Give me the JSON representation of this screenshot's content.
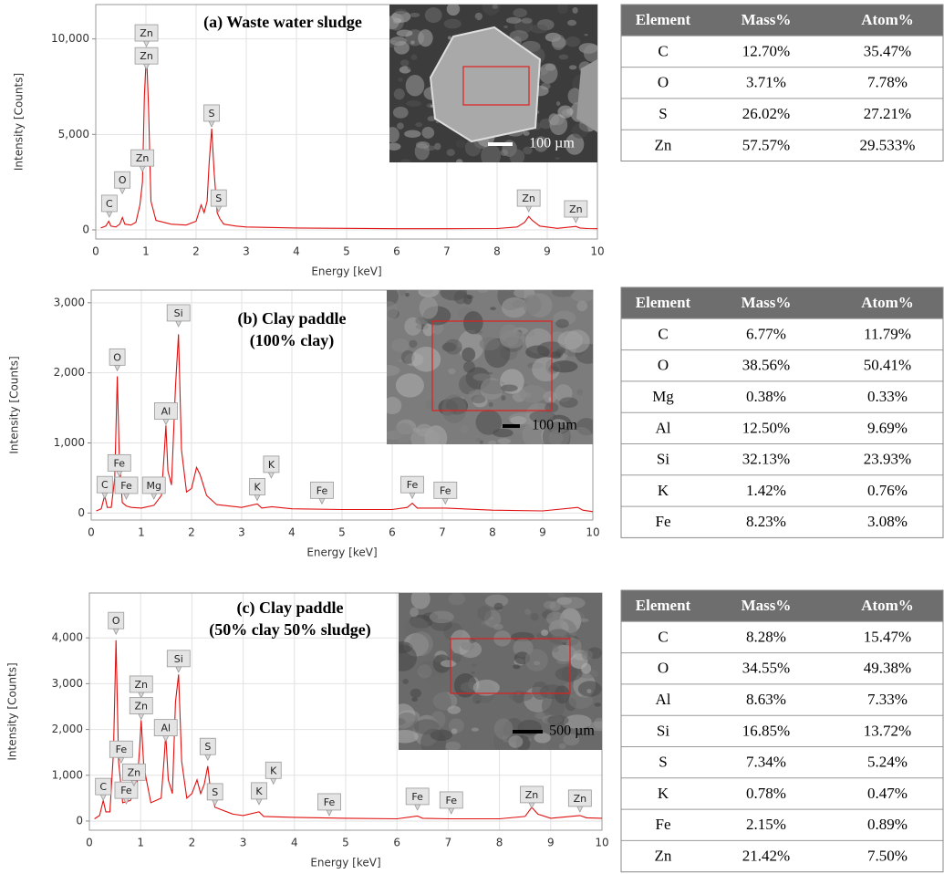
{
  "chart_data": [
    {
      "type": "line",
      "title": "(a) Waste water sludge",
      "inset_scale": "100 µm",
      "x_label": "Energy [keV]",
      "y_label": "Intensity [Counts]",
      "color": "#e01010",
      "grid": true,
      "xlim": [
        0,
        10
      ],
      "xticks": [
        0,
        1,
        2,
        3,
        4,
        5,
        6,
        7,
        8,
        9,
        10
      ],
      "ylim": [
        -480,
        11800
      ],
      "yticks": [
        0,
        {
          "value": 5000,
          "label": "5,000"
        },
        {
          "value": 10000,
          "label": "10,000"
        }
      ],
      "x": [
        0.1,
        0.2,
        0.26,
        0.3,
        0.4,
        0.48,
        0.53,
        0.58,
        0.7,
        0.8,
        0.88,
        0.93,
        0.97,
        1.01,
        1.05,
        1.1,
        1.2,
        1.5,
        1.8,
        2.0,
        2.1,
        2.16,
        2.22,
        2.26,
        2.31,
        2.36,
        2.42,
        2.47,
        2.55,
        2.8,
        3.0,
        4,
        5,
        6,
        7,
        8,
        8.4,
        8.55,
        8.63,
        8.7,
        8.85,
        9.2,
        9.57,
        9.65,
        9.8,
        10
      ],
      "values": [
        100,
        200,
        450,
        200,
        150,
        300,
        650,
        300,
        250,
        400,
        1300,
        2500,
        7000,
        9300,
        6500,
        1500,
        500,
        300,
        250,
        450,
        1300,
        900,
        1500,
        3500,
        5300,
        3000,
        900,
        600,
        300,
        200,
        150,
        100,
        80,
        60,
        60,
        70,
        150,
        400,
        700,
        500,
        200,
        80,
        180,
        100,
        70,
        60
      ],
      "annotations": [
        {
          "text": "C",
          "x": 0.27,
          "y": 670
        },
        {
          "text": "O",
          "x": 0.53,
          "y": 1900
        },
        {
          "text": "Zn",
          "x": 0.93,
          "y": 3050
        },
        {
          "text": "Zn",
          "x": 1.01,
          "y": 9600
        },
        {
          "text": "Zn",
          "x": 1.01,
          "y": 8400
        },
        {
          "text": "S",
          "x": 2.31,
          "y": 5400
        },
        {
          "text": "S",
          "x": 2.45,
          "y": 950
        },
        {
          "text": "Zn",
          "x": 8.63,
          "y": 950
        },
        {
          "text": "Zn",
          "x": 9.57,
          "y": 380
        }
      ]
    },
    {
      "type": "line",
      "title": "(b) Clay paddle",
      "subtitle": "(100% clay)",
      "inset_scale": "100 µm",
      "x_label": "Energy [keV]",
      "y_label": "Intensity [Counts]",
      "color": "#e01010",
      "grid": true,
      "xlim": [
        0,
        10
      ],
      "xticks": [
        0,
        1,
        2,
        3,
        4,
        5,
        6,
        7,
        8,
        9,
        10
      ],
      "ylim": [
        -100,
        3180
      ],
      "yticks": [
        0,
        {
          "value": 1000,
          "label": "1,000"
        },
        {
          "value": 2000,
          "label": "2,000"
        },
        {
          "value": 3000,
          "label": "3,000"
        }
      ],
      "x": [
        0.1,
        0.2,
        0.27,
        0.32,
        0.4,
        0.47,
        0.52,
        0.56,
        0.62,
        0.7,
        0.8,
        1.0,
        1.25,
        1.4,
        1.46,
        1.49,
        1.53,
        1.6,
        1.68,
        1.74,
        1.8,
        1.9,
        2.0,
        2.1,
        2.17,
        2.3,
        2.5,
        3.0,
        3.31,
        3.4,
        3.6,
        4,
        5,
        6,
        6.3,
        6.4,
        6.5,
        7.06,
        8,
        9,
        9.7,
        9.8,
        10
      ],
      "values": [
        30,
        60,
        250,
        80,
        80,
        500,
        1950,
        800,
        150,
        100,
        80,
        70,
        110,
        250,
        900,
        1250,
        600,
        400,
        1800,
        2550,
        900,
        300,
        350,
        650,
        550,
        250,
        120,
        80,
        130,
        70,
        90,
        60,
        50,
        50,
        80,
        140,
        70,
        70,
        40,
        30,
        80,
        40,
        20
      ],
      "annotations": [
        {
          "text": "C",
          "x": 0.27,
          "y": 210
        },
        {
          "text": "O",
          "x": 0.52,
          "y": 2030
        },
        {
          "text": "Fe",
          "x": 0.56,
          "y": 520
        },
        {
          "text": "Fe",
          "x": 0.7,
          "y": 200
        },
        {
          "text": "Mg",
          "x": 1.25,
          "y": 200
        },
        {
          "text": "Al",
          "x": 1.49,
          "y": 1260
        },
        {
          "text": "Si",
          "x": 1.74,
          "y": 2660
        },
        {
          "text": "K",
          "x": 3.31,
          "y": 180
        },
        {
          "text": "K",
          "x": 3.59,
          "y": 500
        },
        {
          "text": "Fe",
          "x": 4.6,
          "y": 130
        },
        {
          "text": "Fe",
          "x": 6.4,
          "y": 210
        },
        {
          "text": "Fe",
          "x": 7.06,
          "y": 130
        }
      ]
    },
    {
      "type": "line",
      "title": "(c) Clay paddle",
      "subtitle": "(50% clay 50% sludge)",
      "inset_scale": "500 µm",
      "x_label": "Energy [keV]",
      "y_label": "Intensity [Counts]",
      "color": "#e01010",
      "grid": true,
      "xlim": [
        0,
        10
      ],
      "xticks": [
        0,
        1,
        2,
        3,
        4,
        5,
        6,
        7,
        8,
        9,
        10
      ],
      "ylim": [
        -200,
        4980
      ],
      "yticks": [
        0,
        {
          "value": 1000,
          "label": "1,000"
        },
        {
          "value": 2000,
          "label": "2,000"
        },
        {
          "value": 3000,
          "label": "3,000"
        },
        {
          "value": 4000,
          "label": "4,000"
        }
      ],
      "x": [
        0.1,
        0.2,
        0.27,
        0.32,
        0.4,
        0.47,
        0.52,
        0.57,
        0.65,
        0.8,
        0.93,
        0.98,
        1.01,
        1.06,
        1.2,
        1.4,
        1.46,
        1.49,
        1.54,
        1.62,
        1.68,
        1.74,
        1.8,
        1.9,
        2.0,
        2.1,
        2.17,
        2.24,
        2.31,
        2.36,
        2.45,
        2.8,
        3.0,
        3.31,
        3.4,
        4,
        5,
        6,
        6.4,
        6.5,
        7,
        8,
        8.5,
        8.63,
        8.75,
        9,
        9.57,
        9.7,
        10
      ],
      "values": [
        50,
        120,
        450,
        200,
        200,
        1500,
        3950,
        1300,
        400,
        450,
        800,
        1600,
        2200,
        1200,
        400,
        500,
        1400,
        1900,
        900,
        600,
        2600,
        3200,
        1300,
        500,
        600,
        900,
        600,
        800,
        1200,
        700,
        300,
        150,
        120,
        200,
        100,
        80,
        60,
        50,
        110,
        60,
        50,
        50,
        100,
        300,
        150,
        60,
        120,
        70,
        60
      ],
      "annotations": [
        {
          "text": "C",
          "x": 0.27,
          "y": 455
        },
        {
          "text": "O",
          "x": 0.52,
          "y": 4080
        },
        {
          "text": "Fe",
          "x": 0.62,
          "y": 1270
        },
        {
          "text": "Fe",
          "x": 0.72,
          "y": 375
        },
        {
          "text": "Zn",
          "x": 0.87,
          "y": 770
        },
        {
          "text": "Zn",
          "x": 1.01,
          "y": 2690
        },
        {
          "text": "Zn",
          "x": 1.01,
          "y": 2220
        },
        {
          "text": "Al",
          "x": 1.49,
          "y": 1740
        },
        {
          "text": "Si",
          "x": 1.74,
          "y": 3250
        },
        {
          "text": "S",
          "x": 2.31,
          "y": 1330
        },
        {
          "text": "S",
          "x": 2.45,
          "y": 340
        },
        {
          "text": "K",
          "x": 3.31,
          "y": 360
        },
        {
          "text": "K",
          "x": 3.59,
          "y": 810
        },
        {
          "text": "Fe",
          "x": 4.68,
          "y": 120
        },
        {
          "text": "Fe",
          "x": 6.4,
          "y": 240
        },
        {
          "text": "Fe",
          "x": 7.06,
          "y": 160
        },
        {
          "text": "Zn",
          "x": 8.63,
          "y": 280
        },
        {
          "text": "Zn",
          "x": 9.57,
          "y": 200
        }
      ]
    }
  ],
  "tables": [
    {
      "header": [
        "Element",
        "Mass%",
        "Atom%"
      ],
      "rows": [
        [
          "C",
          "12.70%",
          "35.47%"
        ],
        [
          "O",
          "3.71%",
          "7.78%"
        ],
        [
          "S",
          "26.02%",
          "27.21%"
        ],
        [
          "Zn",
          "57.57%",
          "29.533%"
        ]
      ]
    },
    {
      "header": [
        "Element",
        "Mass%",
        "Atom%"
      ],
      "rows": [
        [
          "C",
          "6.77%",
          "11.79%"
        ],
        [
          "O",
          "38.56%",
          "50.41%"
        ],
        [
          "Mg",
          "0.38%",
          "0.33%"
        ],
        [
          "Al",
          "12.50%",
          "9.69%"
        ],
        [
          "Si",
          "32.13%",
          "23.93%"
        ],
        [
          "K",
          "1.42%",
          "0.76%"
        ],
        [
          "Fe",
          "8.23%",
          "3.08%"
        ]
      ]
    },
    {
      "header": [
        "Element",
        "Mass%",
        "Atom%"
      ],
      "rows": [
        [
          "C",
          "8.28%",
          "15.47%"
        ],
        [
          "O",
          "34.55%",
          "49.38%"
        ],
        [
          "Al",
          "8.63%",
          "7.33%"
        ],
        [
          "Si",
          "16.85%",
          "13.72%"
        ],
        [
          "S",
          "7.34%",
          "5.24%"
        ],
        [
          "K",
          "0.78%",
          "0.47%"
        ],
        [
          "Fe",
          "2.15%",
          "0.89%"
        ],
        [
          "Zn",
          "21.42%",
          "7.50%"
        ]
      ]
    }
  ]
}
